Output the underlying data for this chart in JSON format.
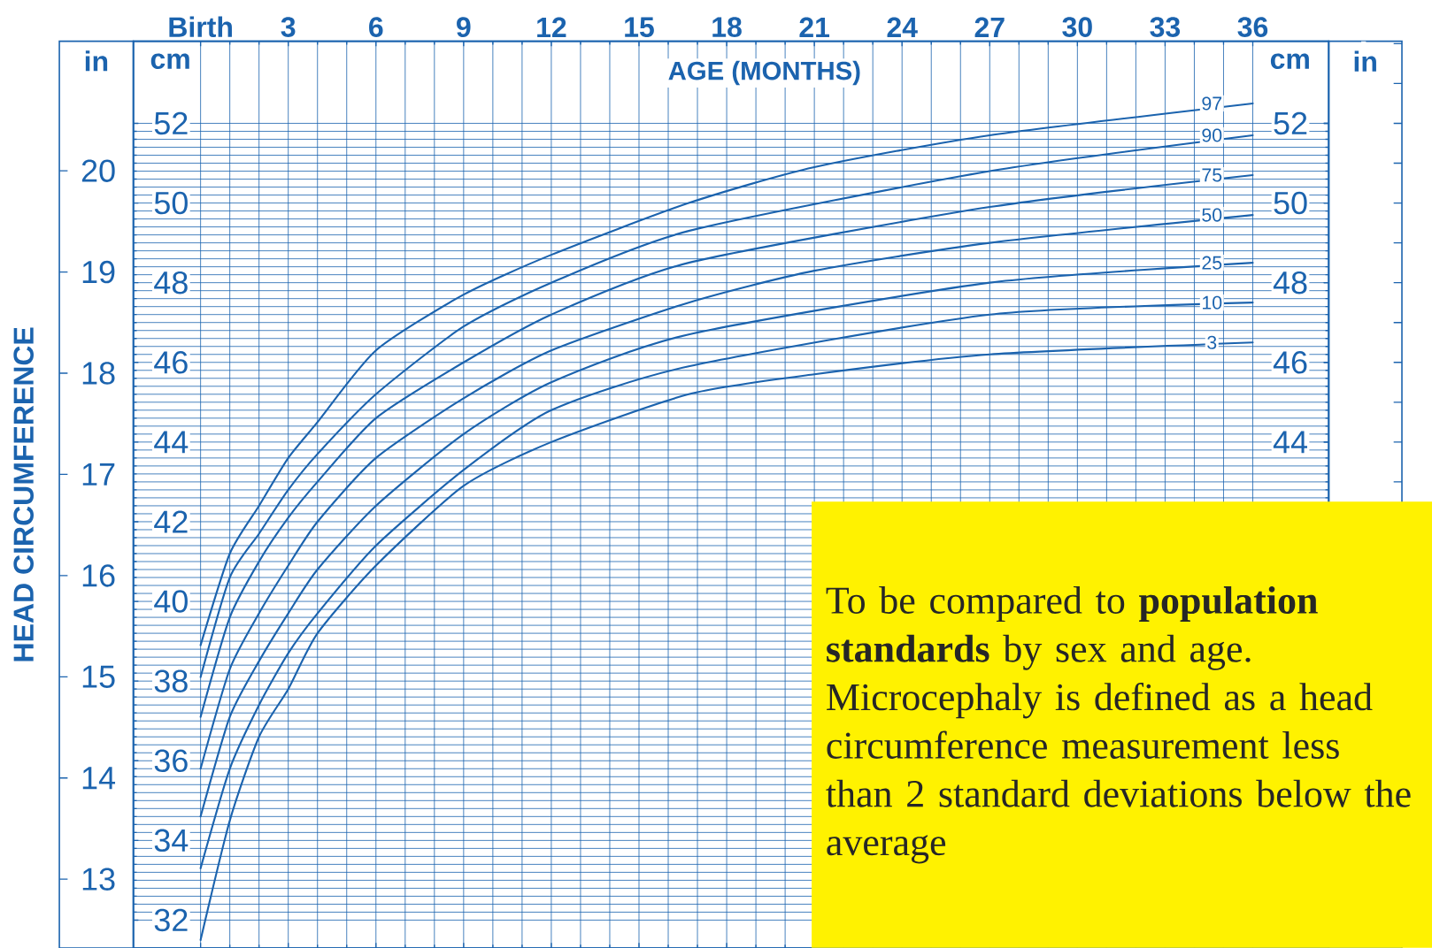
{
  "chart_data": {
    "type": "line",
    "xlabel": "AGE (MONTHS)",
    "ylabel": "HEAD CIRCUMFERENCE",
    "annotations": [
      "in",
      "cm",
      "To be compared to **population standards** by sex and age. Microcephaly is defined as a head circumference measurement less than 2 standard deviations below the average"
    ],
    "xlim": [
      -2.3,
      38.6
    ],
    "xticks": [
      {
        "value": 0,
        "label": "Birth"
      },
      3,
      6,
      9,
      12,
      15,
      18,
      21,
      24,
      27,
      30,
      33,
      36
    ],
    "ylim": [
      31.3,
      54.06
    ],
    "yticks": [
      32,
      34,
      36,
      38,
      40,
      42,
      44,
      46,
      48,
      50,
      52
    ],
    "y2lim": [
      31.3,
      54.06
    ],
    "y2ticks": [
      44,
      46,
      48,
      50,
      52
    ],
    "y3lim": [
      12.32,
      21.28
    ],
    "y3ticks": [
      13,
      14,
      15,
      16,
      17,
      18,
      19,
      20
    ],
    "grid": true,
    "marker": "none",
    "line_style": "solid",
    "series": [
      {
        "name": "97",
        "color": "#1b63ae",
        "x": [
          0,
          1,
          2,
          3,
          4,
          6,
          9,
          12,
          16.7,
          21,
          27,
          36
        ],
        "values": [
          38.9,
          41.2,
          42.4,
          43.6,
          44.5,
          46.3,
          47.7,
          48.7,
          50.0,
          50.9,
          51.7,
          52.5
        ]
      },
      {
        "name": "90",
        "color": "#1b63ae",
        "x": [
          0,
          1,
          2,
          3,
          4,
          6,
          9,
          12,
          16.7,
          27,
          36
        ],
        "values": [
          38.1,
          40.6,
          41.7,
          42.8,
          43.7,
          45.2,
          46.9,
          48.0,
          49.3,
          50.8,
          51.7
        ]
      },
      {
        "name": "75",
        "color": "#1b63ae",
        "x": [
          0,
          1,
          2,
          3,
          4,
          6,
          9,
          12,
          16.7,
          27,
          36
        ],
        "values": [
          37.1,
          39.6,
          41.0,
          42.1,
          43.0,
          44.6,
          46.0,
          47.2,
          48.5,
          49.9,
          50.7
        ]
      },
      {
        "name": "50",
        "color": "#1b63ae",
        "x": [
          0,
          1,
          2,
          3,
          4,
          6,
          9,
          12,
          16.7,
          21,
          27,
          36
        ],
        "values": [
          35.8,
          38.3,
          39.7,
          40.9,
          42.0,
          43.6,
          45.1,
          46.3,
          47.5,
          48.3,
          49.0,
          49.7
        ]
      },
      {
        "name": "25",
        "color": "#1b63ae",
        "x": [
          0,
          1,
          2,
          3,
          4,
          6,
          9,
          12,
          16.7,
          27,
          36
        ],
        "values": [
          34.6,
          37.1,
          38.5,
          39.7,
          40.8,
          42.4,
          44.2,
          45.5,
          46.7,
          48.0,
          48.5
        ]
      },
      {
        "name": "10",
        "color": "#1b63ae",
        "x": [
          0,
          1,
          2,
          3,
          4,
          6,
          9,
          12,
          16.7,
          27,
          36
        ],
        "values": [
          33.3,
          35.8,
          37.4,
          38.7,
          39.7,
          41.4,
          43.3,
          44.8,
          45.9,
          47.2,
          47.5
        ]
      },
      {
        "name": "3",
        "color": "#1b63ae",
        "x": [
          0,
          1,
          2,
          3,
          4,
          6,
          9,
          12,
          16.7,
          21,
          27,
          36
        ],
        "values": [
          31.5,
          34.5,
          36.6,
          37.8,
          39.2,
          40.9,
          42.9,
          44.0,
          45.2,
          45.7,
          46.2,
          46.5
        ]
      }
    ]
  }
}
